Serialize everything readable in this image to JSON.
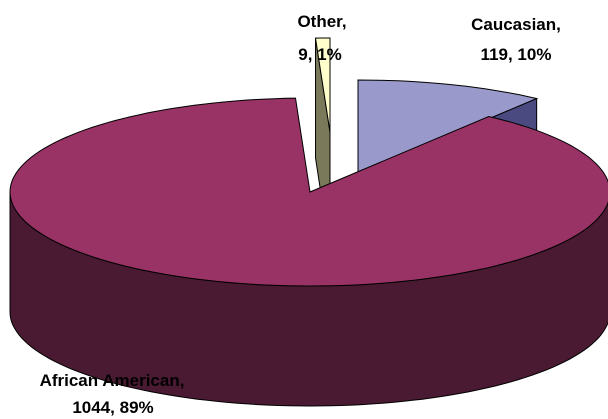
{
  "chart_data": {
    "type": "pie",
    "title": "",
    "three_d": true,
    "exploded": true,
    "legend": "none",
    "slices": [
      {
        "label": "Caucasian",
        "value": 119,
        "percent": "10%",
        "color": "#9999cc",
        "side_color": "#4a4a80",
        "text_line1": "Caucasian,",
        "text_line2": "119, 10%"
      },
      {
        "label": "African American",
        "value": 1044,
        "percent": "89%",
        "color": "#993366",
        "side_color": "#4a1a32",
        "text_line1": "African American,",
        "text_line2": "1044, 89%"
      },
      {
        "label": "Other",
        "value": 9,
        "percent": "1%",
        "color": "#ffffcc",
        "side_color": "#7a7a5a",
        "text_line1": "Other,",
        "text_line2": "9, 1%"
      }
    ]
  }
}
